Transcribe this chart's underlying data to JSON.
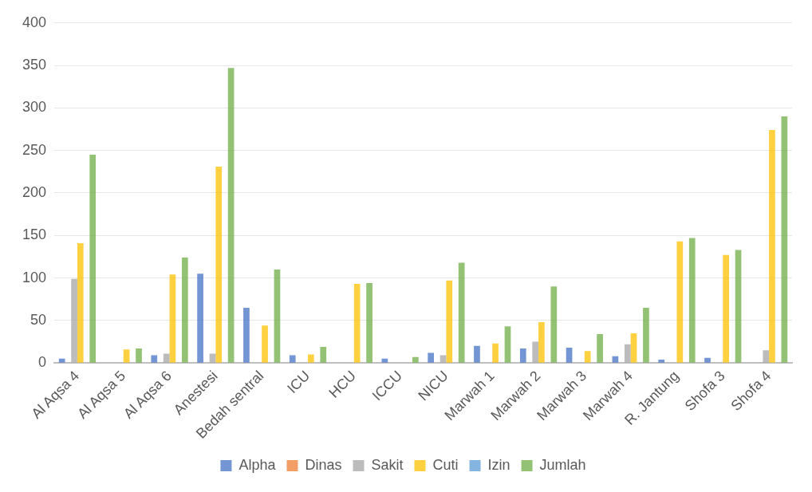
{
  "chart_data": {
    "type": "bar",
    "categories": [
      "Al Aqsa 4",
      "Al Aqsa 5",
      "Al Aqsa 6",
      "Anestesi",
      "Bedah sentral",
      "ICU",
      "HCU",
      "ICCU",
      "NICU",
      "Marwah 1",
      "Marwah 2",
      "Marwah 3",
      "Marwah 4",
      "R. Jantung",
      "Shofa 3",
      "Shofa 4"
    ],
    "series": [
      {
        "name": "Alpha",
        "color": "#4472c4",
        "values": [
          5,
          0,
          9,
          105,
          65,
          9,
          0,
          5,
          12,
          20,
          17,
          18,
          8,
          4,
          6,
          0
        ]
      },
      {
        "name": "Dinas",
        "color": "#ed7d31",
        "values": [
          0,
          0,
          0,
          0,
          0,
          0,
          0,
          0,
          0,
          0,
          0,
          0,
          0,
          0,
          0,
          0
        ]
      },
      {
        "name": "Sakit",
        "color": "#a5a5a5",
        "values": [
          99,
          0,
          11,
          11,
          0,
          0,
          0,
          0,
          9,
          0,
          25,
          0,
          22,
          0,
          0,
          15
        ]
      },
      {
        "name": "Cuti",
        "color": "#ffc000",
        "values": [
          141,
          16,
          104,
          231,
          44,
          10,
          93,
          0,
          97,
          23,
          48,
          14,
          35,
          143,
          127,
          274
        ]
      },
      {
        "name": "Izin",
        "color": "#5b9bd5",
        "values": [
          0,
          0,
          0,
          0,
          0,
          0,
          0,
          0,
          0,
          0,
          0,
          0,
          0,
          0,
          0,
          0
        ]
      },
      {
        "name": "Jumlah",
        "color": "#70ad47",
        "values": [
          245,
          17,
          124,
          347,
          110,
          19,
          94,
          7,
          118,
          43,
          90,
          34,
          65,
          147,
          133,
          290
        ]
      }
    ],
    "ylim": [
      0,
      400
    ],
    "yticks": [
      0,
      50,
      100,
      150,
      200,
      250,
      300,
      350,
      400
    ],
    "grid": "y",
    "legend": "bottom"
  }
}
